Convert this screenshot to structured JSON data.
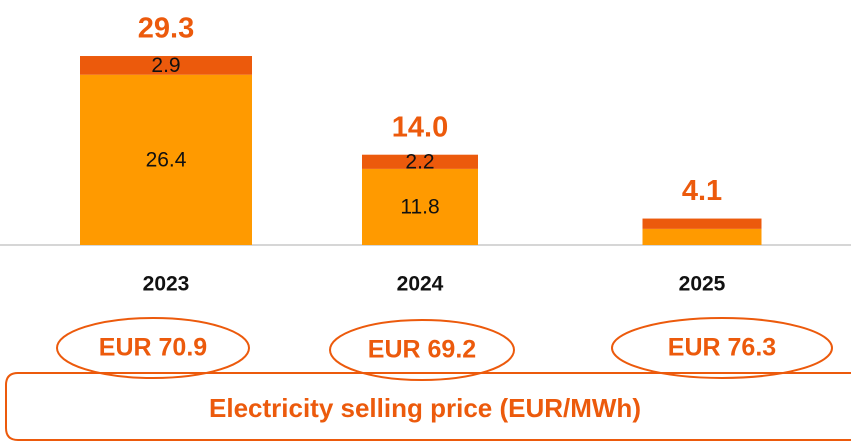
{
  "chart_data": {
    "type": "stacked_bar",
    "categories": [
      "2023",
      "2024",
      "2025"
    ],
    "series": [
      {
        "color": "#ff9a00",
        "values": [
          26.4,
          11.8,
          2.5
        ],
        "value_labels": [
          "26.4",
          "11.8",
          null
        ]
      },
      {
        "color": "#ec5a0c",
        "values": [
          2.9,
          2.2,
          1.6
        ],
        "value_labels": [
          "2.9",
          "2.2",
          null
        ]
      }
    ],
    "totals": [
      29.3,
      14.0,
      4.1
    ],
    "total_labels": [
      "29.3",
      "14.0",
      "4.1"
    ],
    "prices": [
      "EUR 70.9",
      "EUR 69.2",
      "EUR 76.3"
    ],
    "price_caption": "Electricity selling price (EUR/MWh)",
    "ylim": [
      0,
      30
    ]
  }
}
